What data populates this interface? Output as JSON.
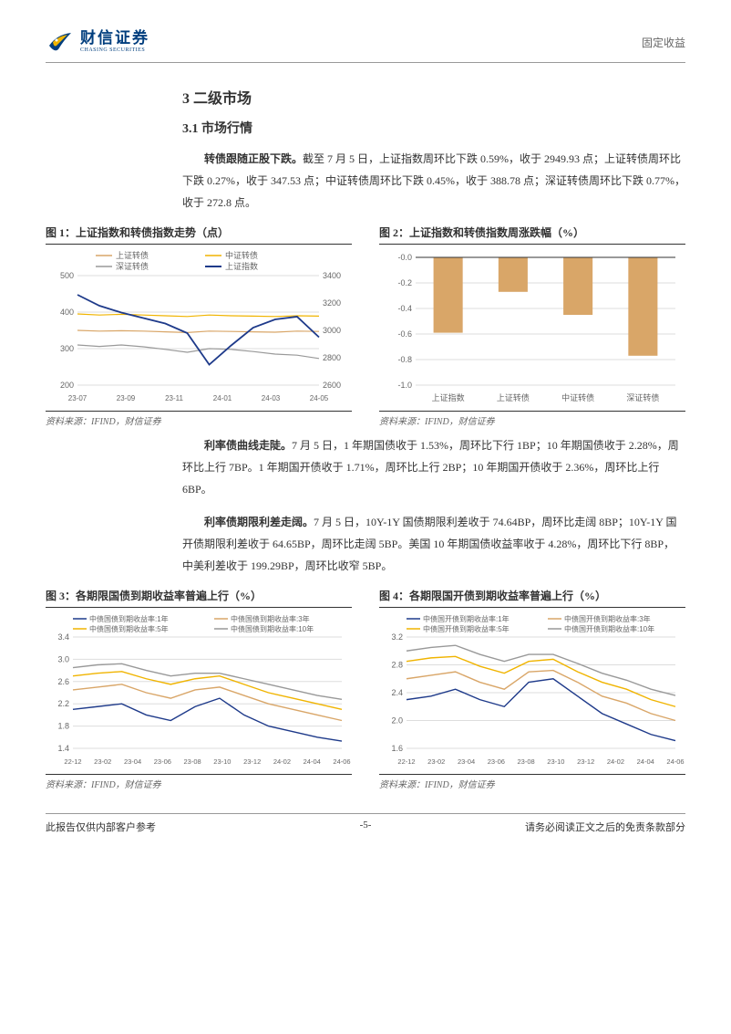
{
  "header": {
    "brand_cn": "财信证券",
    "brand_en": "CHASING SECURITIES",
    "section": "固定收益"
  },
  "h2": "3 二级市场",
  "h3": "3.1 市场行情",
  "para1": "<b>转债跟随正股下跌。</b>截至 7 月 5 日，上证指数周环比下跌 0.59%，收于 2949.93 点；上证转债周环比下跌 0.27%，收于 347.53 点；中证转债周环比下跌 0.45%，收于 388.78 点；深证转债周环比下跌 0.77%，收于 272.8 点。",
  "para2": "<b>利率债曲线走陡。</b>7 月 5 日，1 年期国债收于 1.53%，周环比下行 1BP；10 年期国债收于 2.28%，周环比上行 7BP。1 年期国开债收于 1.71%，周环比上行 2BP；10 年期国开债收于 2.36%，周环比上行 6BP。",
  "para3": "<b>利率债期限利差走阔。</b>7 月 5 日，10Y-1Y 国债期限利差收于 74.64BP，周环比走阔 8BP；10Y-1Y 国开债期限利差收于 64.65BP，周环比走阔 5BP。美国 10 年期国债收益率收于 4.28%，周环比下行 8BP，中美利差收于 199.29BP，周环比收窄 5BP。",
  "source": "资料来源：IFIND，财信证券",
  "footer": {
    "left": "此报告仅供内部客户参考",
    "center": "-5-",
    "right": "请务必阅读正文之后的免责条款部分"
  },
  "chart1": {
    "title": "图 1：上证指数和转债指数走势（点）",
    "type": "line",
    "legend": [
      {
        "label": "上证转债",
        "color": "#d9a668"
      },
      {
        "label": "中证转债",
        "color": "#f0b400"
      },
      {
        "label": "深证转债",
        "color": "#999"
      },
      {
        "label": "上证指数",
        "color": "#1e3a8a"
      }
    ],
    "xlabels": [
      "23-07",
      "23-09",
      "23-11",
      "24-01",
      "24-03",
      "24-05"
    ],
    "left_ticks": [
      200,
      300,
      400,
      500
    ],
    "right_ticks": [
      2600,
      2800,
      3000,
      3200,
      3400
    ],
    "left_lim": [
      200,
      500
    ],
    "right_lim": [
      2600,
      3400
    ],
    "series": {
      "szzf": [
        350,
        348,
        349,
        348,
        346,
        344,
        348,
        347,
        346,
        345,
        348,
        347
      ],
      "zzzf": [
        395,
        392,
        394,
        392,
        390,
        388,
        392,
        390,
        389,
        388,
        390,
        389
      ],
      "sczf": [
        310,
        306,
        310,
        305,
        298,
        290,
        300,
        298,
        292,
        285,
        282,
        273
      ],
      "szidx": [
        3260,
        3180,
        3130,
        3090,
        3050,
        2980,
        2750,
        2890,
        3020,
        3080,
        3100,
        2950
      ]
    },
    "grid_color": "#ddd",
    "bg": "#fff"
  },
  "chart2": {
    "title": "图 2：上证指数和转债指数周涨跌幅（%）",
    "type": "bar",
    "categories": [
      "上证指数",
      "上证转债",
      "中证转债",
      "深证转债"
    ],
    "values": [
      -0.59,
      -0.27,
      -0.45,
      -0.77
    ],
    "bar_color": "#d9a668",
    "ylim": [
      -1.0,
      0.0
    ],
    "ytick_step": 0.2,
    "grid_color": "#ddd",
    "bg": "#fff"
  },
  "chart3": {
    "title": "图 3：各期限国债到期收益率普遍上行（%）",
    "type": "line",
    "legend": [
      {
        "label": "中债国债到期收益率:1年",
        "color": "#1e3a8a"
      },
      {
        "label": "中债国债到期收益率:3年",
        "color": "#d9a668"
      },
      {
        "label": "中债国债到期收益率:5年",
        "color": "#f0b400"
      },
      {
        "label": "中债国债到期收益率:10年",
        "color": "#999"
      }
    ],
    "xlabels": [
      "22-12",
      "23-02",
      "23-04",
      "23-06",
      "23-08",
      "23-10",
      "23-12",
      "24-02",
      "24-04",
      "24-06"
    ],
    "ylim": [
      1.4,
      3.4
    ],
    "yticks": [
      1.4,
      1.8,
      2.2,
      2.6,
      3.0,
      3.4
    ],
    "series": {
      "y1": [
        2.1,
        2.15,
        2.2,
        2.0,
        1.9,
        2.15,
        2.3,
        2.0,
        1.8,
        1.7,
        1.6,
        1.53
      ],
      "y3": [
        2.45,
        2.5,
        2.55,
        2.4,
        2.3,
        2.45,
        2.5,
        2.35,
        2.2,
        2.1,
        2.0,
        1.9
      ],
      "y5": [
        2.7,
        2.75,
        2.78,
        2.65,
        2.55,
        2.65,
        2.7,
        2.55,
        2.4,
        2.3,
        2.2,
        2.1
      ],
      "y10": [
        2.85,
        2.9,
        2.92,
        2.8,
        2.7,
        2.75,
        2.75,
        2.65,
        2.55,
        2.45,
        2.35,
        2.28
      ]
    },
    "grid_color": "#ddd",
    "bg": "#fff"
  },
  "chart4": {
    "title": "图 4：各期限国开债到期收益率普遍上行（%）",
    "type": "line",
    "legend": [
      {
        "label": "中债国开债到期收益率:1年",
        "color": "#1e3a8a"
      },
      {
        "label": "中债国开债到期收益率:3年",
        "color": "#d9a668"
      },
      {
        "label": "中债国开债到期收益率:5年",
        "color": "#f0b400"
      },
      {
        "label": "中债国开债到期收益率:10年",
        "color": "#999"
      }
    ],
    "xlabels": [
      "22-12",
      "23-02",
      "23-04",
      "23-06",
      "23-08",
      "23-10",
      "23-12",
      "24-02",
      "24-04",
      "24-06"
    ],
    "ylim": [
      1.6,
      3.2
    ],
    "yticks": [
      1.6,
      2.0,
      2.4,
      2.8,
      3.2
    ],
    "series": {
      "y1": [
        2.3,
        2.35,
        2.45,
        2.3,
        2.2,
        2.55,
        2.6,
        2.35,
        2.1,
        1.95,
        1.8,
        1.71
      ],
      "y3": [
        2.6,
        2.65,
        2.7,
        2.55,
        2.45,
        2.7,
        2.72,
        2.55,
        2.35,
        2.25,
        2.1,
        2.0
      ],
      "y5": [
        2.85,
        2.9,
        2.92,
        2.78,
        2.68,
        2.85,
        2.88,
        2.7,
        2.55,
        2.45,
        2.3,
        2.2
      ],
      "y10": [
        3.0,
        3.05,
        3.08,
        2.95,
        2.85,
        2.95,
        2.95,
        2.82,
        2.68,
        2.58,
        2.45,
        2.36
      ]
    },
    "grid_color": "#ddd",
    "bg": "#fff"
  }
}
